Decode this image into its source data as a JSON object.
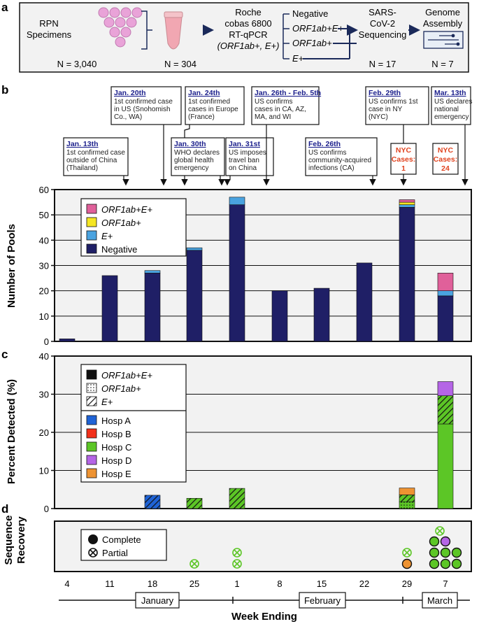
{
  "panel_a": {
    "letter": "a",
    "rpn_label_1": "RPN",
    "rpn_label_2": "Specimens",
    "n_specimens": "N = 3,040",
    "n_pools": "N = 304",
    "roche_1": "Roche",
    "roche_2": "cobas 6800",
    "roche_3": "RT-qPCR",
    "roche_4": "(ORF1ab+, E+)",
    "results": [
      "Negative",
      "ORF1ab+E+",
      "ORF1ab+",
      "E+"
    ],
    "seq_1": "SARS-",
    "seq_2": "CoV-2",
    "seq_3": "Sequencing",
    "n_seq": "N = 17",
    "asm_1": "Genome",
    "asm_2": "Assembly",
    "n_asm": "N = 7"
  },
  "panel_b_letter": "b",
  "panel_c_letter": "c",
  "panel_d_letter": "d",
  "events": [
    {
      "date": "Jan. 13th",
      "lines": [
        "1st confirmed case",
        "outside of China",
        "(Thailand)"
      ]
    },
    {
      "date": "Jan. 20th",
      "lines": [
        "1st confirmed case",
        "in US (Snohomish",
        "Co., WA)"
      ]
    },
    {
      "date": "Jan. 24th",
      "lines": [
        "1st confirmed",
        "cases in Europe",
        "(France)"
      ]
    },
    {
      "date": "Jan. 30th",
      "lines": [
        "WHO declares",
        "global health",
        "emergency"
      ]
    },
    {
      "date": "Jan. 31st",
      "lines": [
        "US imposes",
        "travel ban",
        "on China"
      ]
    },
    {
      "date": "Jan. 26th - Feb. 5th",
      "lines": [
        "US confirms",
        "cases in CA, AZ,",
        "MA, and WI"
      ]
    },
    {
      "date": "Feb. 26th",
      "lines": [
        "US confirms",
        "community-acquired",
        "infections (CA)"
      ]
    },
    {
      "date": "Feb. 29th",
      "lines": [
        "US confirms 1st",
        "case in NY",
        "(NYC)"
      ]
    },
    {
      "date": "Mar. 13th",
      "lines": [
        "US declares",
        "national",
        "emergency"
      ]
    }
  ],
  "nyc_cases": [
    {
      "line1": "NYC",
      "line2": "Cases:",
      "value": "1"
    },
    {
      "line1": "NYC",
      "line2": "Cases:",
      "value": "24"
    }
  ],
  "x_ticks": [
    "4",
    "11",
    "18",
    "25",
    "1",
    "8",
    "15",
    "22",
    "29",
    "7"
  ],
  "months": [
    "January",
    "February",
    "March"
  ],
  "x_title": "Week Ending",
  "colors": {
    "negative": "#1f1f66",
    "e_plus": "#4aa3e0",
    "orf1ab": "#f5e623",
    "orf1ab_e": "#e0609a",
    "hosp_a": "#1f63d6",
    "hosp_b": "#f2301b",
    "hosp_c": "#5cc626",
    "hosp_d": "#b565e6",
    "hosp_e": "#ee9332",
    "panel_bg": "#f2f2f2"
  },
  "chart_data": [
    {
      "type": "bar",
      "stacked": true,
      "ylabel": "Number of Pools",
      "ylim": [
        0,
        60
      ],
      "yticks": [
        0,
        10,
        20,
        30,
        40,
        50,
        60
      ],
      "categories": [
        "4",
        "11",
        "18",
        "25",
        "1",
        "8",
        "15",
        "22",
        "29",
        "7"
      ],
      "series": [
        {
          "name": "Negative",
          "values": [
            1,
            26,
            27,
            36,
            54,
            20,
            21,
            31,
            53,
            18
          ]
        },
        {
          "name": "E+",
          "values": [
            0,
            0,
            1,
            1,
            3,
            0,
            0,
            0,
            1,
            2
          ]
        },
        {
          "name": "ORF1ab+",
          "values": [
            0,
            0,
            0,
            0,
            0,
            0,
            0,
            0,
            1,
            0
          ]
        },
        {
          "name": "ORF1ab+E+",
          "values": [
            0,
            0,
            0,
            0,
            0,
            0,
            0,
            0,
            1,
            7
          ]
        }
      ],
      "legend": "top-left",
      "grid": true
    },
    {
      "type": "bar",
      "stacked": true,
      "ylabel": "Percent Detected (%)",
      "ylim": [
        0,
        40
      ],
      "yticks": [
        0,
        10,
        20,
        30,
        40
      ],
      "categories": [
        "4",
        "11",
        "18",
        "25",
        "1",
        "8",
        "15",
        "22",
        "29",
        "7"
      ],
      "legend_patterns": [
        "ORF1ab+E+",
        "ORF1ab+",
        "E+"
      ],
      "legend_hospitals": [
        "Hosp A",
        "Hosp B",
        "Hosp C",
        "Hosp D",
        "Hosp E"
      ],
      "segments": [
        {
          "category": "18",
          "hospital": "Hosp A",
          "pattern": "E+",
          "value": 3.5
        },
        {
          "category": "25",
          "hospital": "Hosp C",
          "pattern": "E+",
          "value": 2.7
        },
        {
          "category": "1",
          "hospital": "Hosp C",
          "pattern": "E+",
          "value": 5.3
        },
        {
          "category": "29",
          "hospital": "Hosp C",
          "pattern": "ORF1ab+",
          "value": 1.8
        },
        {
          "category": "29",
          "hospital": "Hosp C",
          "pattern": "E+",
          "value": 1.8
        },
        {
          "category": "29",
          "hospital": "Hosp E",
          "pattern": "ORF1ab+E+",
          "value": 1.8
        },
        {
          "category": "7",
          "hospital": "Hosp C",
          "pattern": "ORF1ab+E+",
          "value": 22.2
        },
        {
          "category": "7",
          "hospital": "Hosp C",
          "pattern": "E+",
          "value": 7.4
        },
        {
          "category": "7",
          "hospital": "Hosp D",
          "pattern": "ORF1ab+E+",
          "value": 3.7
        }
      ],
      "legend": "top-left",
      "grid": true
    },
    {
      "type": "scatter",
      "ylabel_1": "Sequence",
      "ylabel_2": "Recovery",
      "legend": [
        "Complete",
        "Partial"
      ],
      "points": [
        {
          "category": "25",
          "row": 1,
          "status": "Partial",
          "hospital": "Hosp C"
        },
        {
          "category": "1",
          "row": 1,
          "status": "Partial",
          "hospital": "Hosp C"
        },
        {
          "category": "1",
          "row": 2,
          "status": "Partial",
          "hospital": "Hosp C"
        },
        {
          "category": "29",
          "row": 1,
          "status": "Complete",
          "hospital": "Hosp E"
        },
        {
          "category": "29",
          "row": 2,
          "status": "Partial",
          "hospital": "Hosp C"
        },
        {
          "category": "7",
          "row": 1,
          "status": "Complete",
          "hospital": "Hosp C",
          "col": 0
        },
        {
          "category": "7",
          "row": 1,
          "status": "Complete",
          "hospital": "Hosp C",
          "col": 1
        },
        {
          "category": "7",
          "row": 1,
          "status": "Complete",
          "hospital": "Hosp C",
          "col": 2
        },
        {
          "category": "7",
          "row": 2,
          "status": "Complete",
          "hospital": "Hosp C",
          "col": 0
        },
        {
          "category": "7",
          "row": 2,
          "status": "Complete",
          "hospital": "Hosp C",
          "col": 1
        },
        {
          "category": "7",
          "row": 2,
          "status": "Complete",
          "hospital": "Hosp C",
          "col": 2
        },
        {
          "category": "7",
          "row": 3,
          "status": "Complete",
          "hospital": "Hosp C",
          "col": 0
        },
        {
          "category": "7",
          "row": 3,
          "status": "Complete",
          "hospital": "Hosp D",
          "col": 1
        },
        {
          "category": "7",
          "row": 4,
          "status": "Partial",
          "hospital": "Hosp C",
          "col": 0.5
        }
      ]
    }
  ]
}
